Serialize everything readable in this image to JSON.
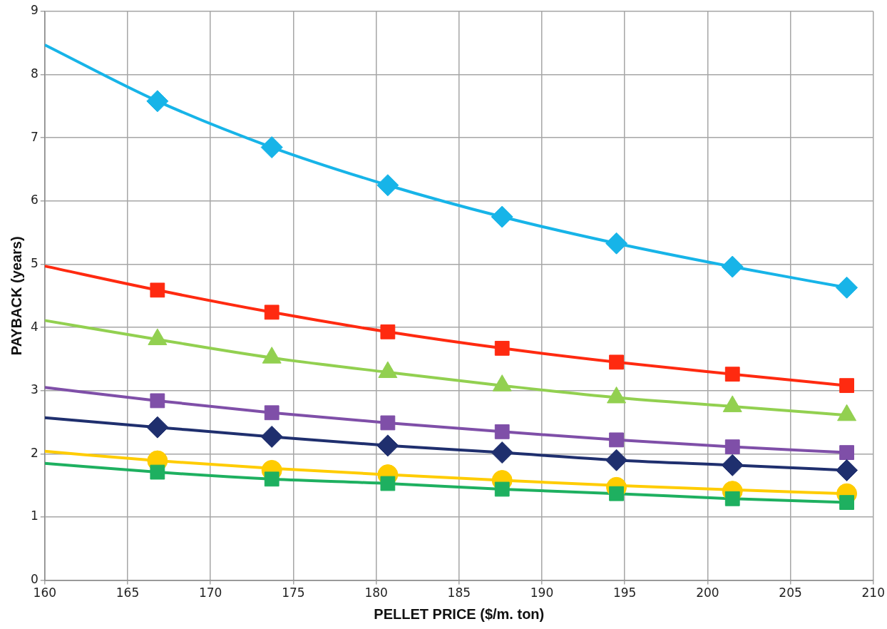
{
  "chart_data": {
    "type": "scatter",
    "xlabel": "PELLET PRICE ($/m. ton)",
    "ylabel": "PAYBACK (years)",
    "xlim": [
      160,
      210
    ],
    "ylim": [
      0,
      9
    ],
    "xticks": [
      160,
      165,
      170,
      175,
      180,
      185,
      190,
      195,
      200,
      205,
      210
    ],
    "yticks": [
      0,
      1,
      2,
      3,
      4,
      5,
      6,
      7,
      8,
      9
    ],
    "grid": true,
    "legend": false,
    "series": [
      {
        "type": "line",
        "marker": "none",
        "color": "#17b4e8",
        "x": [
          160,
          166.8,
          173.7,
          180.7,
          187.6,
          194.5,
          201.5,
          208.4
        ],
        "values": [
          8.47,
          7.58,
          6.85,
          6.25,
          5.75,
          5.33,
          4.96,
          4.63
        ]
      },
      {
        "type": "line",
        "marker": "none",
        "color": "#ff2a10",
        "x": [
          160,
          166.8,
          173.7,
          180.7,
          187.6,
          194.5,
          201.5,
          208.4
        ],
        "values": [
          4.97,
          4.59,
          4.24,
          3.93,
          3.67,
          3.45,
          3.26,
          3.08
        ]
      },
      {
        "type": "line",
        "marker": "none",
        "color": "#92d050",
        "x": [
          160,
          166.8,
          173.7,
          180.7,
          187.6,
          194.5,
          201.5,
          208.4
        ],
        "values": [
          4.11,
          3.81,
          3.52,
          3.29,
          3.08,
          2.89,
          2.75,
          2.61
        ]
      },
      {
        "type": "line",
        "marker": "none",
        "color": "#7f4fa8",
        "x": [
          160,
          166.8,
          173.7,
          180.7,
          187.6,
          194.5,
          201.5,
          208.4
        ],
        "values": [
          3.05,
          2.84,
          2.65,
          2.49,
          2.35,
          2.22,
          2.11,
          2.02
        ]
      },
      {
        "type": "line",
        "marker": "none",
        "color": "#1f2f6e",
        "x": [
          160,
          166.8,
          173.7,
          180.7,
          187.6,
          194.5,
          201.5,
          208.4
        ],
        "values": [
          2.57,
          2.42,
          2.27,
          2.13,
          2.02,
          1.9,
          1.82,
          1.74
        ]
      },
      {
        "type": "line",
        "marker": "none",
        "color": "#ffcc00",
        "x": [
          160,
          166.8,
          173.7,
          180.7,
          187.6,
          194.5,
          201.5,
          208.4
        ],
        "values": [
          2.04,
          1.89,
          1.77,
          1.67,
          1.58,
          1.5,
          1.43,
          1.37
        ]
      },
      {
        "type": "line",
        "marker": "none",
        "color": "#1eb060",
        "x": [
          160,
          166.8,
          173.7,
          180.7,
          187.6,
          194.5,
          201.5,
          208.4
        ],
        "values": [
          1.85,
          1.71,
          1.6,
          1.53,
          1.44,
          1.37,
          1.29,
          1.23
        ]
      },
      {
        "type": "scatter",
        "marker": "diamond",
        "color": "#17b4e8",
        "x": [
          166.8,
          173.7,
          180.7,
          187.6,
          194.5,
          201.5,
          208.4
        ],
        "values": [
          7.58,
          6.85,
          6.25,
          5.75,
          5.33,
          4.96,
          4.63
        ]
      },
      {
        "type": "scatter",
        "marker": "square",
        "color": "#ff2a10",
        "x": [
          166.8,
          173.7,
          180.7,
          187.6,
          194.5,
          201.5,
          208.4
        ],
        "values": [
          4.59,
          4.24,
          3.93,
          3.67,
          3.45,
          3.26,
          3.08
        ]
      },
      {
        "type": "scatter",
        "marker": "triangle",
        "color": "#92d050",
        "x": [
          166.8,
          173.7,
          180.7,
          187.6,
          194.5,
          201.5,
          208.4
        ],
        "values": [
          3.81,
          3.52,
          3.29,
          3.08,
          2.89,
          2.75,
          2.61
        ]
      },
      {
        "type": "scatter",
        "marker": "square",
        "color": "#7f4fa8",
        "x": [
          166.8,
          173.7,
          180.7,
          187.6,
          194.5,
          201.5,
          208.4
        ],
        "values": [
          2.84,
          2.65,
          2.49,
          2.35,
          2.22,
          2.11,
          2.02
        ]
      },
      {
        "type": "scatter",
        "marker": "diamond",
        "color": "#1f2f6e",
        "x": [
          166.8,
          173.7,
          180.7,
          187.6,
          194.5,
          201.5,
          208.4
        ],
        "values": [
          2.42,
          2.27,
          2.13,
          2.02,
          1.9,
          1.82,
          1.74
        ]
      },
      {
        "type": "scatter",
        "marker": "circle",
        "color": "#ffcc00",
        "x": [
          166.8,
          173.7,
          180.7,
          187.6,
          194.5,
          201.5,
          208.4
        ],
        "values": [
          1.89,
          1.74,
          1.67,
          1.58,
          1.47,
          1.41,
          1.37
        ]
      },
      {
        "type": "scatter",
        "marker": "square",
        "color": "#1eb060",
        "x": [
          166.8,
          173.7,
          180.7,
          187.6,
          194.5,
          201.5,
          208.4
        ],
        "values": [
          1.71,
          1.6,
          1.53,
          1.44,
          1.37,
          1.29,
          1.23
        ]
      }
    ]
  }
}
